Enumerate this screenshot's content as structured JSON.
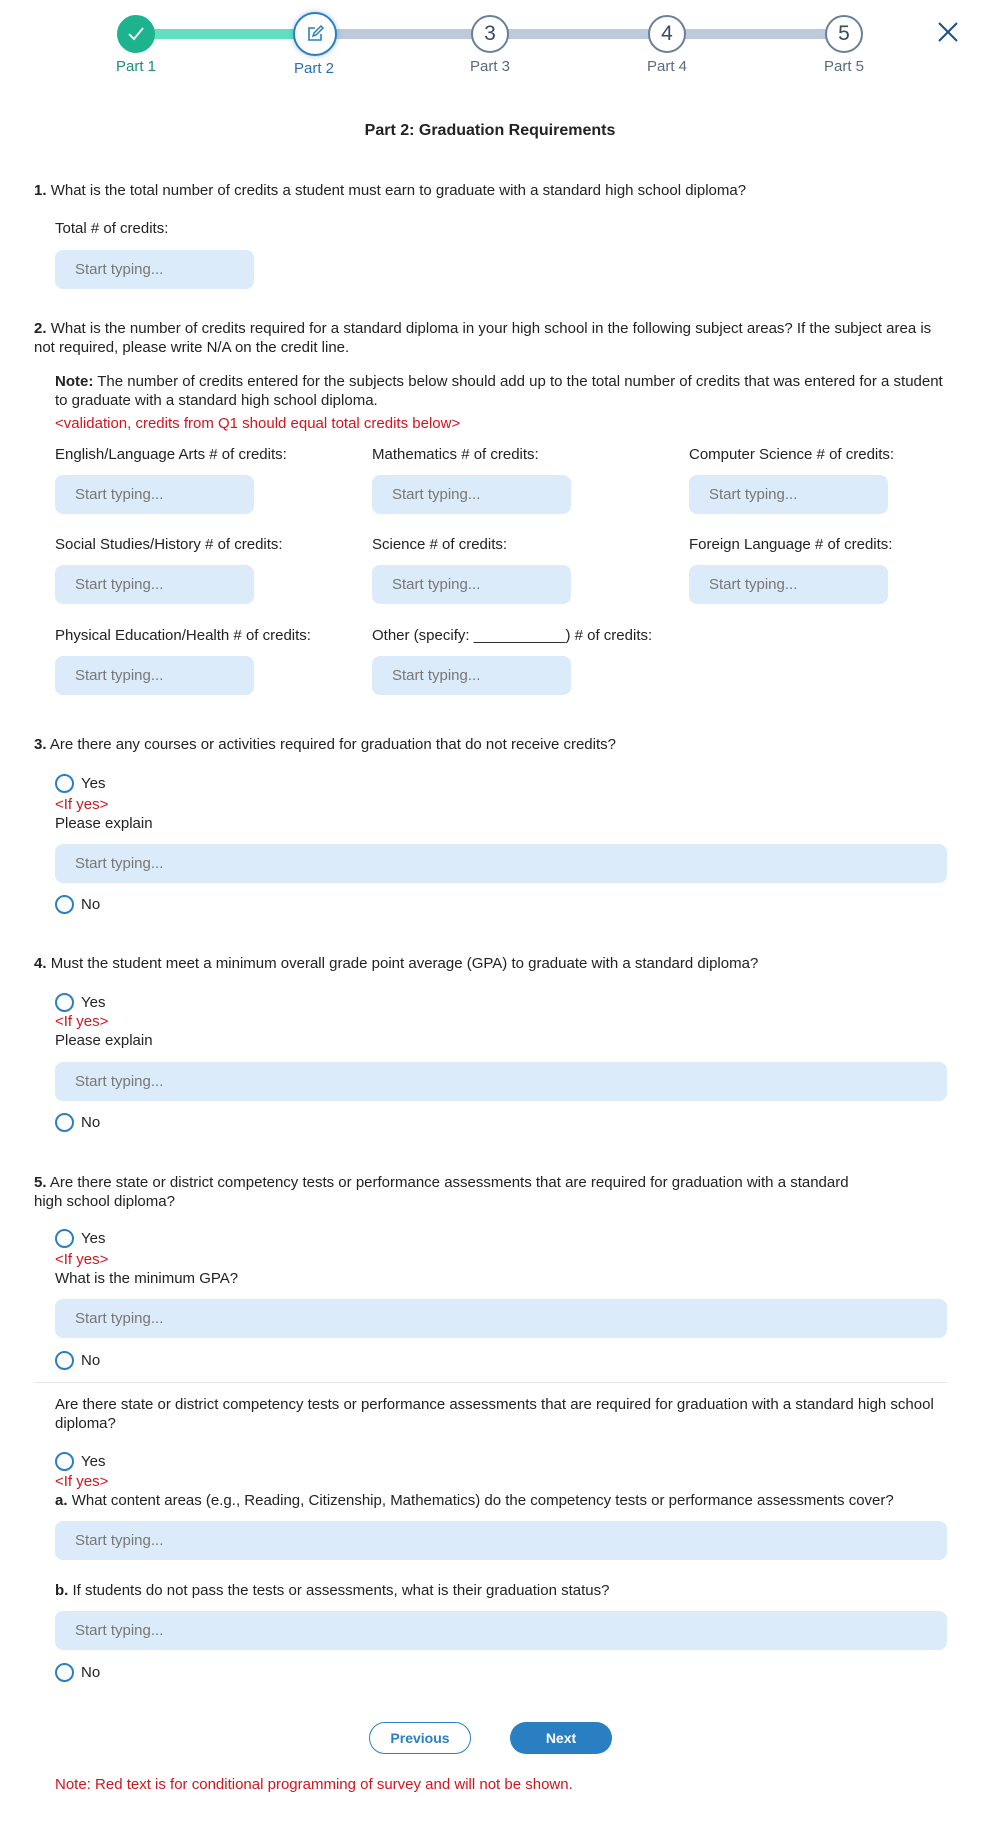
{
  "stepper": {
    "steps": [
      {
        "label": "Part 1",
        "status": "complete"
      },
      {
        "label": "Part 2",
        "status": "current"
      },
      {
        "label": "Part 3",
        "number": "3"
      },
      {
        "label": "Part 4",
        "number": "4"
      },
      {
        "label": "Part 5",
        "number": "5"
      }
    ],
    "colors": {
      "complete": "#1db38f",
      "current": "#2a7fc3",
      "pending_line": "#bccadb",
      "done_line": "#5fe0c0"
    }
  },
  "title": "Part 2: Graduation Requirements",
  "placeholder": "Start typing...",
  "if_yes": "<If yes>",
  "yes": "Yes",
  "no": "No",
  "q1": {
    "num": "1.",
    "text": "What is the total number of credits a student must earn to graduate with a standard high school diploma?",
    "label": "Total # of credits:"
  },
  "q2": {
    "num": "2.",
    "text": "What is the number of credits required for a standard diploma in your high school in the following subject areas? If the subject area is not required, please write N/A on the credit line.",
    "note_label": "Note:",
    "note": "The number of credits entered for the subjects below should add up to the total number of credits that was entered for a student to graduate with a standard high school diploma.",
    "validation": "<validation, credits from Q1 should equal total credits below>",
    "fields": [
      "English/Language Arts # of credits:",
      "Mathematics # of credits:",
      "Computer Science # of credits:",
      "Social Studies/History # of credits:",
      "Science # of credits:",
      "Foreign Language # of credits:",
      "Physical Education/Health # of credits:",
      "Other (specify: ___________) # of credits:"
    ]
  },
  "q3": {
    "num": "3.",
    "text": "Are there any courses or activities required for graduation that do not receive credits?",
    "followup": "Please explain"
  },
  "q4": {
    "num": "4.",
    "text": "Must the student meet a minimum overall grade point average (GPA) to graduate with a standard diploma?",
    "followup": "Please explain"
  },
  "q5": {
    "num": "5.",
    "text": "Are there state or district competency tests or performance assessments that are required for graduation with a standard high school  diploma?",
    "followup": "What is the minimum GPA?"
  },
  "q6": {
    "text": "Are there state or district competency tests or performance assessments that are required for graduation with a standard high school diploma?",
    "a_num": "a.",
    "a_text": "What content areas (e.g., Reading, Citizenship, Mathematics) do the competency tests or performance assessments cover?",
    "b_num": "b.",
    "b_text": "If students do not pass the tests or assessments, what is their graduation status?"
  },
  "buttons": {
    "previous": "Previous",
    "next": "Next"
  },
  "footer_note": "Note: Red text is for conditional programming of survey and will not be shown."
}
